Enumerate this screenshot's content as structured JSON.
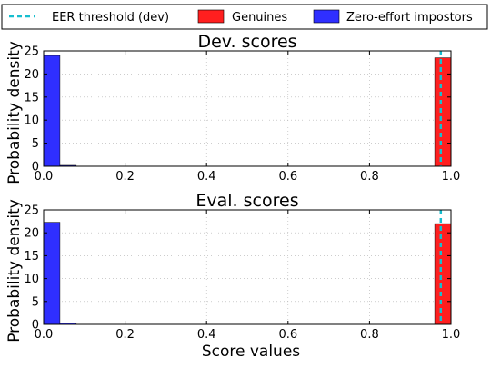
{
  "legend": {
    "items": [
      {
        "label": "EER threshold (dev)",
        "type": "dashed-line",
        "color": "#17becf"
      },
      {
        "label": "Genuines",
        "type": "patch",
        "color": "#ff1f1f"
      },
      {
        "label": "Zero-effort impostors",
        "type": "patch",
        "color": "#2f2fff"
      }
    ],
    "placement": "top (above plots, outside axes)"
  },
  "xlabel": "Score values",
  "ylabel": "Probability density",
  "chart_data": [
    {
      "type": "bar",
      "title": "Dev. scores",
      "xlabel": "",
      "ylabel": "Probability density",
      "xlim": [
        0.0,
        1.0
      ],
      "ylim": [
        0,
        25
      ],
      "xticks": [
        "0.0",
        "0.2",
        "0.4",
        "0.6",
        "0.8",
        "1.0"
      ],
      "yticks": [
        "0",
        "5",
        "10",
        "15",
        "20",
        "25"
      ],
      "grid": true,
      "threshold": {
        "name": "EER threshold (dev)",
        "x": 0.975
      },
      "series": [
        {
          "name": "Zero-effort impostors",
          "color": "#2f2fff",
          "bins": [
            [
              0.0,
              0.04,
              24.0
            ],
            [
              0.04,
              0.08,
              0.2
            ]
          ]
        },
        {
          "name": "Genuines",
          "color": "#ff1f1f",
          "bins": [
            [
              0.96,
              1.0,
              23.5
            ]
          ]
        }
      ]
    },
    {
      "type": "bar",
      "title": "Eval. scores",
      "xlabel": "Score values",
      "ylabel": "Probability density",
      "xlim": [
        0.0,
        1.0
      ],
      "ylim": [
        0,
        25
      ],
      "xticks": [
        "0.0",
        "0.2",
        "0.4",
        "0.6",
        "0.8",
        "1.0"
      ],
      "yticks": [
        "0",
        "5",
        "10",
        "15",
        "20",
        "25"
      ],
      "grid": true,
      "threshold": {
        "name": "EER threshold (dev)",
        "x": 0.975
      },
      "series": [
        {
          "name": "Zero-effort impostors",
          "color": "#2f2fff",
          "bins": [
            [
              0.0,
              0.04,
              22.3
            ],
            [
              0.04,
              0.08,
              0.25
            ]
          ]
        },
        {
          "name": "Genuines",
          "color": "#ff1f1f",
          "bins": [
            [
              0.96,
              1.0,
              22.0
            ]
          ]
        }
      ]
    }
  ]
}
